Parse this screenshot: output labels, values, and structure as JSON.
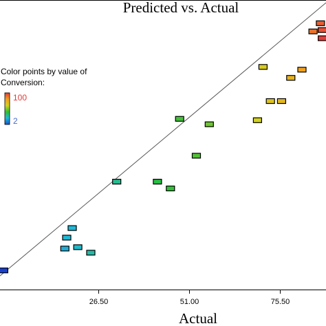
{
  "chart_data": {
    "type": "scatter",
    "title": "Predicted vs. Actual",
    "xlabel": "Actual",
    "ylabel": "",
    "xlim": [
      0,
      88
    ],
    "ylim": [
      -6,
      100
    ],
    "x_ticks": [
      {
        "value": 26.5,
        "label": "26.50"
      },
      {
        "value": 51.0,
        "label": "51.00"
      },
      {
        "value": 75.5,
        "label": "75.50"
      }
    ],
    "grid": false,
    "reference_line": {
      "from": [
        0,
        -1
      ],
      "to": [
        88,
        99
      ]
    },
    "color_legend": {
      "title_lines": [
        "Color points by value of",
        "Conversion:"
      ],
      "max_label": "100",
      "min_label": "2",
      "min_value": 2,
      "max_value": 100,
      "colors": [
        "#e23a3a",
        "#f0a020",
        "#d4d020",
        "#30c030",
        "#20b8d8",
        "#1850d0"
      ]
    },
    "points": [
      {
        "x": 1.0,
        "y": 1.0,
        "conversion": 2
      },
      {
        "x": 19.5,
        "y": 16.5,
        "conversion": 20
      },
      {
        "x": 18.0,
        "y": 13.0,
        "conversion": 20
      },
      {
        "x": 17.5,
        "y": 9.0,
        "conversion": 18
      },
      {
        "x": 21.0,
        "y": 9.5,
        "conversion": 22
      },
      {
        "x": 24.5,
        "y": 7.5,
        "conversion": 28
      },
      {
        "x": 31.5,
        "y": 33.5,
        "conversion": 32
      },
      {
        "x": 42.5,
        "y": 33.5,
        "conversion": 45
      },
      {
        "x": 46.0,
        "y": 31.0,
        "conversion": 48
      },
      {
        "x": 48.5,
        "y": 56.5,
        "conversion": 50
      },
      {
        "x": 53.0,
        "y": 43.0,
        "conversion": 52
      },
      {
        "x": 56.5,
        "y": 54.5,
        "conversion": 56
      },
      {
        "x": 69.5,
        "y": 56.0,
        "conversion": 70
      },
      {
        "x": 71.0,
        "y": 75.5,
        "conversion": 72
      },
      {
        "x": 73.0,
        "y": 63.0,
        "conversion": 75
      },
      {
        "x": 76.0,
        "y": 63.0,
        "conversion": 78
      },
      {
        "x": 78.5,
        "y": 71.5,
        "conversion": 80
      },
      {
        "x": 81.5,
        "y": 74.5,
        "conversion": 85
      },
      {
        "x": 84.5,
        "y": 88.5,
        "conversion": 92
      },
      {
        "x": 86.5,
        "y": 91.5,
        "conversion": 95
      },
      {
        "x": 87.0,
        "y": 89.0,
        "conversion": 97
      },
      {
        "x": 87.0,
        "y": 86.0,
        "conversion": 100
      }
    ]
  }
}
